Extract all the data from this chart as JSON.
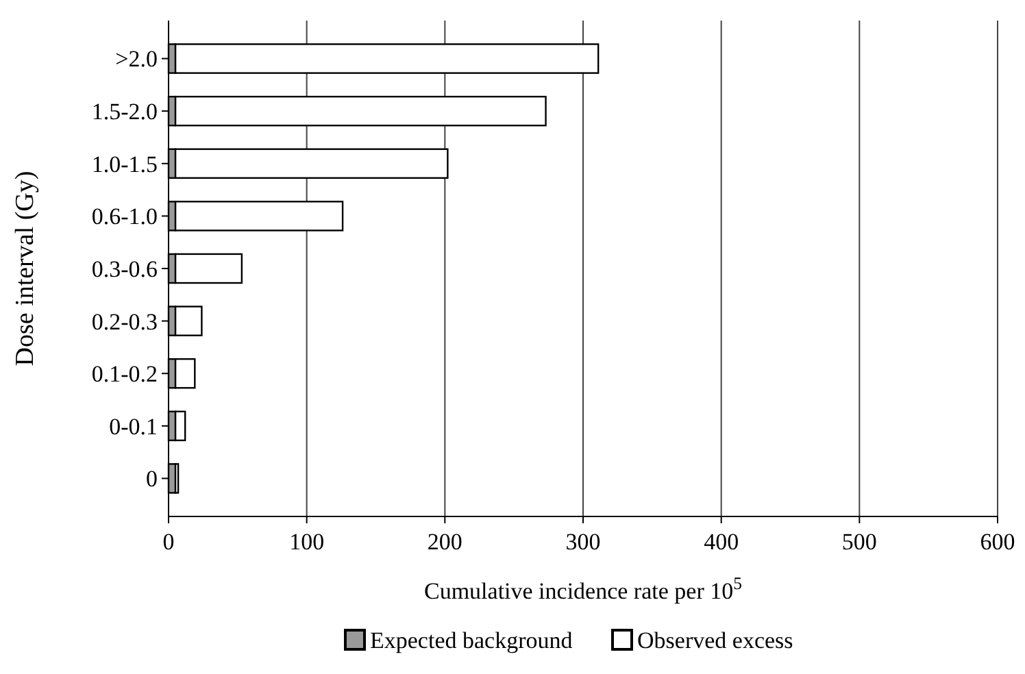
{
  "chart_data": {
    "type": "bar",
    "orientation": "horizontal",
    "stacked": true,
    "xlabel": "Cumulative incidence rate per 10$^{5}$",
    "ylabel": "Dose interval (Gy)",
    "categories": [
      ">2.0",
      "1.5-2.0",
      "1.0-1.5",
      "0.6-1.0",
      "0.3-0.6",
      "0.2-0.3",
      "0.1-0.2",
      "0-0.1",
      "0"
    ],
    "series": [
      {
        "name": "Expected background",
        "color": "#9a9a9a",
        "values": [
          5,
          5,
          5,
          5,
          5,
          5,
          5,
          5,
          5
        ]
      },
      {
        "name": "Observed excess",
        "color": "#ffffff",
        "values": [
          306,
          268,
          197,
          121,
          48,
          19,
          14,
          7,
          2
        ]
      }
    ],
    "xlim": [
      0,
      600
    ],
    "xticks": [
      0,
      100,
      200,
      300,
      400,
      500,
      600
    ],
    "grid": "x",
    "legend": "bottom"
  }
}
